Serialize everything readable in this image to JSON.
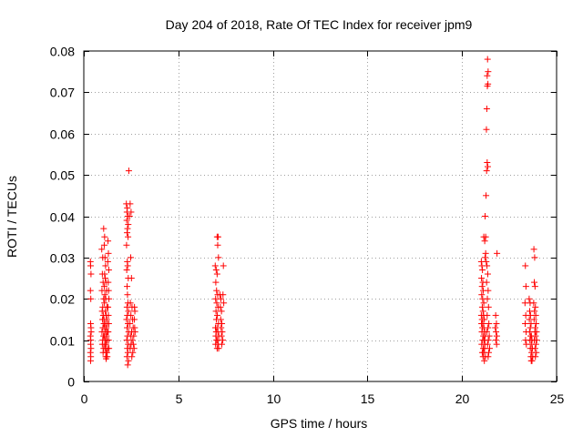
{
  "chart_data": {
    "type": "scatter",
    "title": "Day 204 of 2018, Rate Of TEC Index for receiver jpm9",
    "xlabel": "GPS time / hours",
    "ylabel": "ROTI / TECUs",
    "xlim": [
      0,
      25
    ],
    "ylim": [
      0,
      0.08
    ],
    "xticks": [
      0,
      5,
      10,
      15,
      20,
      25
    ],
    "yticks": [
      0,
      0.01,
      0.02,
      0.03,
      0.04,
      0.05,
      0.06,
      0.07,
      0.08
    ],
    "xtick_labels": [
      "0",
      "5",
      "10",
      "15",
      "20",
      "25"
    ],
    "ytick_labels": [
      "0",
      "0.01",
      "0.02",
      "0.03",
      "0.04",
      "0.05",
      "0.06",
      "0.07",
      "0.08"
    ],
    "grid": true,
    "marker": "+",
    "color": "#ff0000",
    "series": [
      {
        "name": "ROTI",
        "points": [
          [
            0.35,
            0.029
          ],
          [
            0.36,
            0.028
          ],
          [
            0.38,
            0.026
          ],
          [
            0.35,
            0.022
          ],
          [
            0.37,
            0.02
          ],
          [
            0.36,
            0.014
          ],
          [
            0.38,
            0.013
          ],
          [
            0.35,
            0.011
          ],
          [
            0.37,
            0.01
          ],
          [
            0.36,
            0.009
          ],
          [
            0.38,
            0.008
          ],
          [
            0.35,
            0.007
          ],
          [
            0.37,
            0.006
          ],
          [
            0.36,
            0.005
          ],
          [
            0.39,
            0.012
          ],
          [
            0.95,
            0.032
          ],
          [
            1.0,
            0.03
          ],
          [
            0.98,
            0.026
          ],
          [
            1.02,
            0.024
          ],
          [
            0.96,
            0.022
          ],
          [
            1.05,
            0.02
          ],
          [
            1.0,
            0.018
          ],
          [
            0.97,
            0.017
          ],
          [
            1.03,
            0.016
          ],
          [
            0.99,
            0.015
          ],
          [
            1.06,
            0.014
          ],
          [
            1.01,
            0.013
          ],
          [
            0.96,
            0.012
          ],
          [
            1.04,
            0.011
          ],
          [
            1.0,
            0.01
          ],
          [
            0.98,
            0.009
          ],
          [
            1.05,
            0.008
          ],
          [
            1.02,
            0.007
          ],
          [
            1.05,
            0.037
          ],
          [
            1.1,
            0.035
          ],
          [
            1.08,
            0.033
          ],
          [
            1.12,
            0.03
          ],
          [
            1.15,
            0.028
          ],
          [
            1.1,
            0.026
          ],
          [
            1.13,
            0.025
          ],
          [
            1.17,
            0.024
          ],
          [
            1.08,
            0.023
          ],
          [
            1.2,
            0.022
          ],
          [
            1.11,
            0.021
          ],
          [
            1.16,
            0.02
          ],
          [
            1.09,
            0.019
          ],
          [
            1.22,
            0.018
          ],
          [
            1.14,
            0.017
          ],
          [
            1.18,
            0.016
          ],
          [
            1.07,
            0.015
          ],
          [
            1.21,
            0.015
          ],
          [
            1.12,
            0.014
          ],
          [
            1.24,
            0.014
          ],
          [
            1.1,
            0.013
          ],
          [
            1.19,
            0.013
          ],
          [
            1.15,
            0.012
          ],
          [
            1.25,
            0.012
          ],
          [
            1.08,
            0.011
          ],
          [
            1.2,
            0.011
          ],
          [
            1.13,
            0.01
          ],
          [
            1.23,
            0.01
          ],
          [
            1.17,
            0.009
          ],
          [
            1.11,
            0.009
          ],
          [
            1.26,
            0.008
          ],
          [
            1.14,
            0.008
          ],
          [
            1.19,
            0.007
          ],
          [
            1.22,
            0.007
          ],
          [
            1.16,
            0.006
          ],
          [
            1.24,
            0.006
          ],
          [
            1.18,
            0.0055
          ],
          [
            1.28,
            0.034
          ],
          [
            1.3,
            0.031
          ],
          [
            1.27,
            0.029
          ],
          [
            1.32,
            0.027
          ],
          [
            1.29,
            0.024
          ],
          [
            1.31,
            0.022
          ],
          [
            1.33,
            0.02
          ],
          [
            1.28,
            0.018
          ],
          [
            1.3,
            0.016
          ],
          [
            1.32,
            0.014
          ],
          [
            1.29,
            0.012
          ],
          [
            1.31,
            0.01
          ],
          [
            1.33,
            0.008
          ],
          [
            2.25,
            0.043
          ],
          [
            2.3,
            0.042
          ],
          [
            2.28,
            0.041
          ],
          [
            2.33,
            0.04
          ],
          [
            2.27,
            0.039
          ],
          [
            2.35,
            0.038
          ],
          [
            2.31,
            0.037
          ],
          [
            2.29,
            0.036
          ],
          [
            2.34,
            0.035
          ],
          [
            2.38,
            0.051
          ],
          [
            2.26,
            0.033
          ],
          [
            2.3,
            0.029
          ],
          [
            2.32,
            0.028
          ],
          [
            2.27,
            0.027
          ],
          [
            2.35,
            0.025
          ],
          [
            2.29,
            0.023
          ],
          [
            2.31,
            0.021
          ],
          [
            2.33,
            0.019
          ],
          [
            2.28,
            0.018
          ],
          [
            2.36,
            0.017
          ],
          [
            2.3,
            0.016
          ],
          [
            2.26,
            0.015
          ],
          [
            2.34,
            0.014
          ],
          [
            2.29,
            0.013
          ],
          [
            2.37,
            0.012
          ],
          [
            2.31,
            0.011
          ],
          [
            2.27,
            0.01
          ],
          [
            2.35,
            0.009
          ],
          [
            2.3,
            0.008
          ],
          [
            2.33,
            0.007
          ],
          [
            2.28,
            0.006
          ],
          [
            2.36,
            0.005
          ],
          [
            2.32,
            0.004
          ],
          [
            2.45,
            0.043
          ],
          [
            2.5,
            0.041
          ],
          [
            2.42,
            0.04
          ],
          [
            2.48,
            0.03
          ],
          [
            2.52,
            0.025
          ],
          [
            2.46,
            0.019
          ],
          [
            2.55,
            0.018
          ],
          [
            2.49,
            0.016
          ],
          [
            2.58,
            0.015
          ],
          [
            2.44,
            0.014
          ],
          [
            2.61,
            0.013
          ],
          [
            2.53,
            0.012
          ],
          [
            2.47,
            0.011
          ],
          [
            2.64,
            0.011
          ],
          [
            2.56,
            0.01
          ],
          [
            2.5,
            0.009
          ],
          [
            2.62,
            0.009
          ],
          [
            2.45,
            0.008
          ],
          [
            2.59,
            0.007
          ],
          [
            2.54,
            0.006
          ],
          [
            2.66,
            0.008
          ],
          [
            2.68,
            0.018
          ],
          [
            2.7,
            0.017
          ],
          [
            2.67,
            0.015
          ],
          [
            2.69,
            0.013
          ],
          [
            2.71,
            0.012
          ],
          [
            6.95,
            0.028
          ],
          [
            7.0,
            0.027
          ],
          [
            7.05,
            0.026
          ],
          [
            6.98,
            0.024
          ],
          [
            7.02,
            0.022
          ],
          [
            7.08,
            0.021
          ],
          [
            6.97,
            0.02
          ],
          [
            7.03,
            0.019
          ],
          [
            7.1,
            0.018
          ],
          [
            6.99,
            0.017
          ],
          [
            7.06,
            0.016
          ],
          [
            7.01,
            0.015
          ],
          [
            7.12,
            0.014
          ],
          [
            6.96,
            0.013
          ],
          [
            7.04,
            0.013
          ],
          [
            7.09,
            0.012
          ],
          [
            7.0,
            0.012
          ],
          [
            7.14,
            0.011
          ],
          [
            6.98,
            0.011
          ],
          [
            7.07,
            0.01
          ],
          [
            7.02,
            0.01
          ],
          [
            7.11,
            0.009
          ],
          [
            6.97,
            0.009
          ],
          [
            7.05,
            0.008
          ],
          [
            7.13,
            0.008
          ],
          [
            7.05,
            0.035
          ],
          [
            7.1,
            0.035
          ],
          [
            7.08,
            0.033
          ],
          [
            7.12,
            0.03
          ],
          [
            7.2,
            0.021
          ],
          [
            7.25,
            0.02
          ],
          [
            7.22,
            0.018
          ],
          [
            7.28,
            0.017
          ],
          [
            7.24,
            0.015
          ],
          [
            7.3,
            0.014
          ],
          [
            7.26,
            0.013
          ],
          [
            7.32,
            0.012
          ],
          [
            7.28,
            0.011
          ],
          [
            7.35,
            0.01
          ],
          [
            7.3,
            0.009
          ],
          [
            7.38,
            0.028
          ],
          [
            7.36,
            0.021
          ],
          [
            7.4,
            0.019
          ],
          [
            21.02,
            0.029
          ],
          [
            21.05,
            0.028
          ],
          [
            21.08,
            0.027
          ],
          [
            21.03,
            0.025
          ],
          [
            21.1,
            0.024
          ],
          [
            21.06,
            0.023
          ],
          [
            21.12,
            0.022
          ],
          [
            21.04,
            0.021
          ],
          [
            21.09,
            0.02
          ],
          [
            21.15,
            0.019
          ],
          [
            21.07,
            0.018
          ],
          [
            21.11,
            0.017
          ],
          [
            21.02,
            0.016
          ],
          [
            21.14,
            0.016
          ],
          [
            21.06,
            0.015
          ],
          [
            21.18,
            0.015
          ],
          [
            21.1,
            0.014
          ],
          [
            21.03,
            0.014
          ],
          [
            21.16,
            0.013
          ],
          [
            21.08,
            0.013
          ],
          [
            21.2,
            0.012
          ],
          [
            21.05,
            0.012
          ],
          [
            21.13,
            0.011
          ],
          [
            21.22,
            0.011
          ],
          [
            21.09,
            0.01
          ],
          [
            21.17,
            0.01
          ],
          [
            21.04,
            0.009
          ],
          [
            21.21,
            0.009
          ],
          [
            21.12,
            0.008
          ],
          [
            21.19,
            0.008
          ],
          [
            21.07,
            0.007
          ],
          [
            21.15,
            0.007
          ],
          [
            21.24,
            0.006
          ],
          [
            21.11,
            0.006
          ],
          [
            21.18,
            0.005
          ],
          [
            21.15,
            0.035
          ],
          [
            21.2,
            0.034
          ],
          [
            21.25,
            0.031
          ],
          [
            21.22,
            0.03
          ],
          [
            21.28,
            0.029
          ],
          [
            21.35,
            0.078
          ],
          [
            21.38,
            0.075
          ],
          [
            21.33,
            0.074
          ],
          [
            21.37,
            0.072
          ],
          [
            21.34,
            0.0715
          ],
          [
            21.31,
            0.066
          ],
          [
            21.29,
            0.061
          ],
          [
            21.33,
            0.053
          ],
          [
            21.36,
            0.052
          ],
          [
            21.3,
            0.051
          ],
          [
            21.27,
            0.045
          ],
          [
            21.22,
            0.04
          ],
          [
            21.25,
            0.035
          ],
          [
            21.32,
            0.028
          ],
          [
            21.36,
            0.026
          ],
          [
            21.3,
            0.024
          ],
          [
            21.38,
            0.022
          ],
          [
            21.34,
            0.02
          ],
          [
            21.4,
            0.018
          ],
          [
            21.33,
            0.016
          ],
          [
            21.42,
            0.014
          ],
          [
            21.37,
            0.013
          ],
          [
            21.31,
            0.012
          ],
          [
            21.44,
            0.011
          ],
          [
            21.39,
            0.01
          ],
          [
            21.35,
            0.009
          ],
          [
            21.46,
            0.008
          ],
          [
            21.41,
            0.007
          ],
          [
            21.38,
            0.006
          ],
          [
            21.85,
            0.031
          ],
          [
            21.78,
            0.016
          ],
          [
            21.82,
            0.014
          ],
          [
            21.76,
            0.013
          ],
          [
            21.8,
            0.012
          ],
          [
            21.84,
            0.011
          ],
          [
            21.79,
            0.01
          ],
          [
            21.83,
            0.009
          ],
          [
            23.35,
            0.028
          ],
          [
            23.38,
            0.023
          ],
          [
            23.33,
            0.019
          ],
          [
            23.37,
            0.016
          ],
          [
            23.34,
            0.014
          ],
          [
            23.39,
            0.012
          ],
          [
            23.36,
            0.01
          ],
          [
            23.4,
            0.009
          ],
          [
            23.55,
            0.02
          ],
          [
            23.6,
            0.019
          ],
          [
            23.58,
            0.017
          ],
          [
            23.62,
            0.016
          ],
          [
            23.56,
            0.015
          ],
          [
            23.65,
            0.014
          ],
          [
            23.61,
            0.013
          ],
          [
            23.57,
            0.012
          ],
          [
            23.67,
            0.011
          ],
          [
            23.63,
            0.011
          ],
          [
            23.59,
            0.01
          ],
          [
            23.7,
            0.01
          ],
          [
            23.66,
            0.009
          ],
          [
            23.61,
            0.008
          ],
          [
            23.72,
            0.008
          ],
          [
            23.68,
            0.007
          ],
          [
            23.64,
            0.006
          ],
          [
            23.74,
            0.006
          ],
          [
            23.7,
            0.005
          ],
          [
            23.66,
            0.005
          ],
          [
            23.8,
            0.032
          ],
          [
            23.84,
            0.03
          ],
          [
            23.82,
            0.024
          ],
          [
            23.86,
            0.023
          ],
          [
            23.79,
            0.019
          ],
          [
            23.88,
            0.018
          ],
          [
            23.83,
            0.017
          ],
          [
            23.9,
            0.016
          ],
          [
            23.81,
            0.015
          ],
          [
            23.92,
            0.014
          ],
          [
            23.87,
            0.013
          ],
          [
            23.85,
            0.012
          ],
          [
            23.94,
            0.012
          ],
          [
            23.89,
            0.011
          ],
          [
            23.82,
            0.01
          ],
          [
            23.95,
            0.01
          ],
          [
            23.91,
            0.009
          ],
          [
            23.86,
            0.008
          ],
          [
            23.93,
            0.007
          ],
          [
            23.88,
            0.006
          ]
        ]
      }
    ]
  }
}
